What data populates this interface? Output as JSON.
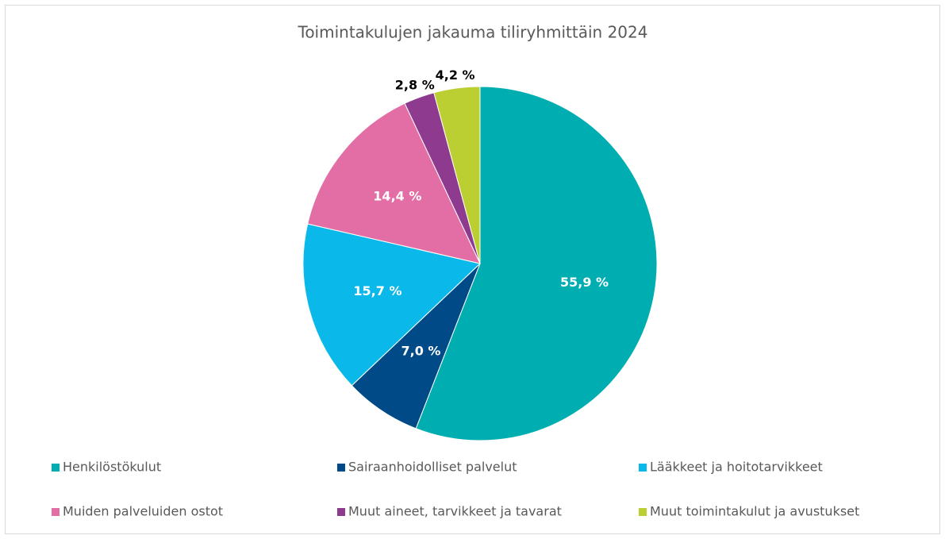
{
  "chart_data": {
    "type": "pie",
    "title": "Toimintakulujen jakauma tiliryhmittäin 2024",
    "categories": [
      "Henkilöstökulut",
      "Sairaanhoidolliset palvelut",
      "Lääkkeet ja hoitotarvikkeet",
      "Muiden palveluiden ostot",
      "Muut aineet, tarvikkeet ja tavarat",
      "Muut toimintakulut ja avustukset"
    ],
    "values": [
      55.9,
      7.0,
      15.7,
      14.4,
      2.8,
      4.2
    ],
    "value_labels": [
      "55,9 %",
      "7,0 %",
      "15,7 %",
      "14,4 %",
      "2,8 %",
      "4,2 %"
    ],
    "colors": [
      "#00adb0",
      "#004a87",
      "#0ab9ea",
      "#e36da5",
      "#8e3a8e",
      "#bccf32"
    ],
    "legend": "bottom"
  }
}
